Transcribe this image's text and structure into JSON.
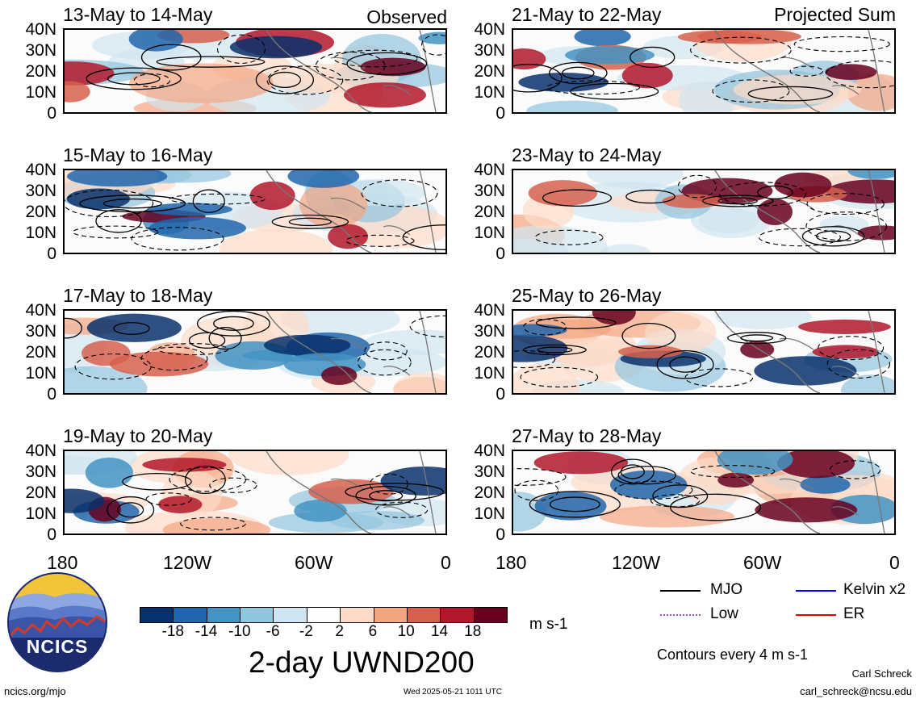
{
  "figure": {
    "title": "2-day UWND200",
    "units": "m s-1",
    "contour_note": "Contours every 4 m s-1",
    "author": "Carl Schreck",
    "email": "carl_schreck@ncsu.edu",
    "site": "ncics.org/mjo",
    "timestamp": "Wed 2025-05-21 1011 UTC",
    "logo_text": "NCICS"
  },
  "left_column_label": "Observed",
  "right_column_label": "Projected Sum",
  "panels_left": [
    {
      "title": "13-May to 14-May"
    },
    {
      "title": "15-May to 16-May"
    },
    {
      "title": "17-May to 18-May"
    },
    {
      "title": "19-May to 20-May"
    }
  ],
  "panels_right": [
    {
      "title": "21-May to 22-May"
    },
    {
      "title": "23-May to 24-May"
    },
    {
      "title": "25-May to 26-May"
    },
    {
      "title": "27-May to 28-May"
    }
  ],
  "lat_ticks": [
    "40N",
    "30N",
    "20N",
    "10N",
    "0"
  ],
  "lon_ticks": [
    "180",
    "120W",
    "60W",
    "0"
  ],
  "colorbar": {
    "ticks": [
      "-18",
      "-14",
      "-10",
      "-6",
      "-2",
      "2",
      "6",
      "10",
      "14",
      "18"
    ],
    "colors": [
      "#08306b",
      "#2166ac",
      "#4393c3",
      "#92c5de",
      "#d1e5f0",
      "#fdfdfd",
      "#fddbc7",
      "#f4a582",
      "#d6604d",
      "#b2182b",
      "#67001f"
    ]
  },
  "legend": [
    {
      "label": "MJO",
      "color": "#000000"
    },
    {
      "label": "Kelvin x2",
      "color": "#0000ff"
    },
    {
      "label": "Low",
      "color": "#a040e0"
    },
    {
      "label": "ER",
      "color": "#e00000"
    }
  ]
}
